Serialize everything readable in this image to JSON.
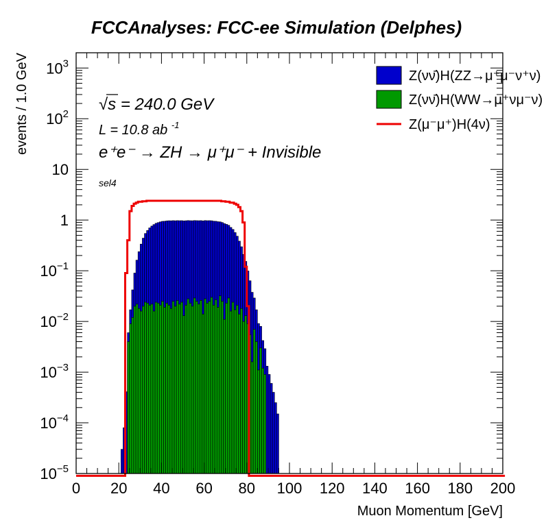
{
  "chart_data": {
    "type": "histogram",
    "title": "FCCAnalyses: FCC-ee Simulation (Delphes)",
    "xlabel": "Muon Momentum [GeV]",
    "ylabel": "events / 1.0 GeV",
    "xlim": [
      0,
      200
    ],
    "ylim": [
      1e-05,
      2000
    ],
    "log_y": true,
    "x_ticks": [
      "0",
      "20",
      "40",
      "60",
      "80",
      "100",
      "120",
      "140",
      "160",
      "180",
      "200"
    ],
    "y_ticks": [
      {
        "value": 1e-05,
        "base": "10",
        "exp": "−5"
      },
      {
        "value": 0.0001,
        "base": "10",
        "exp": "−4"
      },
      {
        "value": 0.001,
        "base": "10",
        "exp": "−3"
      },
      {
        "value": 0.01,
        "base": "10",
        "exp": "−2"
      },
      {
        "value": 0.1,
        "base": "10",
        "exp": "−1"
      },
      {
        "value": 1,
        "base": "1",
        "exp": ""
      },
      {
        "value": 10,
        "base": "10",
        "exp": ""
      },
      {
        "value": 100,
        "base": "10",
        "exp": "2"
      },
      {
        "value": 1000,
        "base": "10",
        "exp": "3"
      }
    ],
    "annotations": {
      "sqrt_s_value": "= 240.0 GeV",
      "lumi_text": "L = 10.8 ab",
      "lumi_exp": "-1",
      "process": "e⁺e⁻ → ZH → μ⁺μ⁻ + Invisible",
      "selection": "sel4"
    },
    "legend_position": "top-right",
    "series": [
      {
        "name": "Z(νν̄)H(ZZ→μ⁺μ⁻ν⁺ν)",
        "style": "stacked-fill",
        "color": "#0000cc",
        "bins": [
          [
            21,
            2e-05
          ],
          [
            22,
            7e-05
          ],
          [
            23,
            0.0004
          ],
          [
            24,
            0.002
          ],
          [
            25,
            0.008
          ],
          [
            26,
            0.03
          ],
          [
            27,
            0.07
          ],
          [
            28,
            0.14
          ],
          [
            29,
            0.22
          ],
          [
            30,
            0.32
          ],
          [
            31,
            0.42
          ],
          [
            32,
            0.52
          ],
          [
            33,
            0.6
          ],
          [
            34,
            0.68
          ],
          [
            35,
            0.74
          ],
          [
            36,
            0.8
          ],
          [
            37,
            0.84
          ],
          [
            38,
            0.87
          ],
          [
            39,
            0.9
          ],
          [
            40,
            0.92
          ],
          [
            41,
            0.93
          ],
          [
            42,
            0.94
          ],
          [
            43,
            0.95
          ],
          [
            44,
            0.95
          ],
          [
            45,
            0.95
          ],
          [
            46,
            0.95
          ],
          [
            47,
            0.95
          ],
          [
            48,
            0.95
          ],
          [
            49,
            0.95
          ],
          [
            50,
            0.95
          ],
          [
            51,
            0.95
          ],
          [
            52,
            0.95
          ],
          [
            53,
            0.95
          ],
          [
            54,
            0.95
          ],
          [
            55,
            0.95
          ],
          [
            56,
            0.95
          ],
          [
            57,
            0.95
          ],
          [
            58,
            0.95
          ],
          [
            59,
            0.95
          ],
          [
            60,
            0.95
          ],
          [
            61,
            0.95
          ],
          [
            62,
            0.95
          ],
          [
            63,
            0.94
          ],
          [
            64,
            0.93
          ],
          [
            65,
            0.92
          ],
          [
            66,
            0.91
          ],
          [
            67,
            0.89
          ],
          [
            68,
            0.87
          ],
          [
            69,
            0.84
          ],
          [
            70,
            0.8
          ],
          [
            71,
            0.76
          ],
          [
            72,
            0.7
          ],
          [
            73,
            0.63
          ],
          [
            74,
            0.55
          ],
          [
            75,
            0.46
          ],
          [
            76,
            0.37
          ],
          [
            77,
            0.28
          ],
          [
            78,
            0.2
          ],
          [
            79,
            0.14
          ],
          [
            80,
            0.09
          ],
          [
            81,
            0.058
          ],
          [
            82,
            0.036
          ],
          [
            83,
            0.022
          ],
          [
            84,
            0.013
          ],
          [
            85,
            0.008
          ],
          [
            86,
            0.005
          ],
          [
            87,
            0.003
          ],
          [
            88,
            0.002
          ],
          [
            89,
            0.0013
          ],
          [
            90,
            0.0009
          ],
          [
            91,
            0.0006
          ],
          [
            92,
            0.0004
          ],
          [
            93,
            0.00025
          ],
          [
            94,
            0.00015
          ],
          [
            95,
            1e-05
          ]
        ]
      },
      {
        "name": "Z(νν̄)H(WW→μ⁺νμ⁻ν)",
        "style": "stacked-fill",
        "color": "#009900",
        "bins": [
          [
            21,
            1e-05
          ],
          [
            22,
            1e-05
          ],
          [
            23,
            1e-05
          ],
          [
            24,
            0.004
          ],
          [
            25,
            0.009
          ],
          [
            26,
            0.012
          ],
          [
            27,
            0.02
          ],
          [
            28,
            0.022
          ],
          [
            29,
            0.018
          ],
          [
            30,
            0.016
          ],
          [
            31,
            0.02
          ],
          [
            32,
            0.024
          ],
          [
            33,
            0.023
          ],
          [
            34,
            0.021
          ],
          [
            35,
            0.022
          ],
          [
            36,
            0.016
          ],
          [
            37,
            0.024
          ],
          [
            38,
            0.023
          ],
          [
            39,
            0.021
          ],
          [
            40,
            0.025
          ],
          [
            41,
            0.019
          ],
          [
            42,
            0.023
          ],
          [
            43,
            0.021
          ],
          [
            44,
            0.018
          ],
          [
            45,
            0.025
          ],
          [
            46,
            0.02
          ],
          [
            47,
            0.026
          ],
          [
            48,
            0.022
          ],
          [
            49,
            0.024
          ],
          [
            50,
            0.013
          ],
          [
            51,
            0.021
          ],
          [
            52,
            0.028
          ],
          [
            53,
            0.023
          ],
          [
            54,
            0.02
          ],
          [
            55,
            0.029
          ],
          [
            56,
            0.025
          ],
          [
            57,
            0.022
          ],
          [
            58,
            0.026
          ],
          [
            59,
            0.014
          ],
          [
            60,
            0.028
          ],
          [
            61,
            0.023
          ],
          [
            62,
            0.025
          ],
          [
            63,
            0.03
          ],
          [
            64,
            0.021
          ],
          [
            65,
            0.027
          ],
          [
            66,
            0.019
          ],
          [
            67,
            0.032
          ],
          [
            68,
            0.025
          ],
          [
            69,
            0.011
          ],
          [
            70,
            0.023
          ],
          [
            71,
            0.029
          ],
          [
            72,
            0.016
          ],
          [
            73,
            0.024
          ],
          [
            74,
            0.017
          ],
          [
            75,
            0.021
          ],
          [
            76,
            0.014
          ],
          [
            77,
            0.018
          ],
          [
            78,
            0.01
          ],
          [
            79,
            0.013
          ],
          [
            80,
            0.009
          ],
          [
            81,
            0.0055
          ],
          [
            82,
            0.0016
          ],
          [
            83,
            0.007
          ],
          [
            84,
            0.004
          ],
          [
            85,
            0.0011
          ],
          [
            86,
            0.003
          ],
          [
            87,
            0.0012
          ],
          [
            88,
            0.0009
          ],
          [
            89,
            1e-05
          ]
        ]
      },
      {
        "name": "Z(μ⁻μ⁺)H(4ν)",
        "style": "line",
        "color": "#ee0000",
        "bins": [
          [
            0,
            9e-06
          ],
          [
            1,
            9e-06
          ],
          [
            2,
            9e-06
          ],
          [
            3,
            9e-06
          ],
          [
            4,
            9e-06
          ],
          [
            5,
            9e-06
          ],
          [
            6,
            9e-06
          ],
          [
            7,
            9e-06
          ],
          [
            8,
            9e-06
          ],
          [
            9,
            9e-06
          ],
          [
            10,
            9e-06
          ],
          [
            11,
            9e-06
          ],
          [
            12,
            9e-06
          ],
          [
            13,
            9e-06
          ],
          [
            14,
            9e-06
          ],
          [
            15,
            9e-06
          ],
          [
            16,
            9e-06
          ],
          [
            17,
            9e-06
          ],
          [
            18,
            9e-06
          ],
          [
            19,
            9e-06
          ],
          [
            20,
            9e-06
          ],
          [
            21,
            9e-06
          ],
          [
            22,
            9e-06
          ],
          [
            23,
            0.09
          ],
          [
            24,
            0.4
          ],
          [
            25,
            1.5
          ],
          [
            26,
            1.9
          ],
          [
            27,
            2.1
          ],
          [
            28,
            2.2
          ],
          [
            29,
            2.3
          ],
          [
            30,
            2.3
          ],
          [
            31,
            2.35
          ],
          [
            32,
            2.35
          ],
          [
            33,
            2.4
          ],
          [
            34,
            2.4
          ],
          [
            35,
            2.4
          ],
          [
            36,
            2.4
          ],
          [
            37,
            2.4
          ],
          [
            38,
            2.4
          ],
          [
            39,
            2.4
          ],
          [
            40,
            2.4
          ],
          [
            41,
            2.4
          ],
          [
            42,
            2.4
          ],
          [
            43,
            2.4
          ],
          [
            44,
            2.4
          ],
          [
            45,
            2.4
          ],
          [
            46,
            2.4
          ],
          [
            47,
            2.4
          ],
          [
            48,
            2.4
          ],
          [
            49,
            2.4
          ],
          [
            50,
            2.4
          ],
          [
            51,
            2.4
          ],
          [
            52,
            2.4
          ],
          [
            53,
            2.4
          ],
          [
            54,
            2.4
          ],
          [
            55,
            2.4
          ],
          [
            56,
            2.4
          ],
          [
            57,
            2.4
          ],
          [
            58,
            2.4
          ],
          [
            59,
            2.4
          ],
          [
            60,
            2.4
          ],
          [
            61,
            2.4
          ],
          [
            62,
            2.4
          ],
          [
            63,
            2.4
          ],
          [
            64,
            2.4
          ],
          [
            65,
            2.4
          ],
          [
            66,
            2.4
          ],
          [
            67,
            2.4
          ],
          [
            68,
            2.35
          ],
          [
            69,
            2.35
          ],
          [
            70,
            2.3
          ],
          [
            71,
            2.3
          ],
          [
            72,
            2.2
          ],
          [
            73,
            2.2
          ],
          [
            74,
            2.1
          ],
          [
            75,
            2.0
          ],
          [
            76,
            1.8
          ],
          [
            77,
            1.5
          ],
          [
            78,
            0.9
          ],
          [
            79,
            0.12
          ],
          [
            80,
            0.02
          ],
          [
            81,
            9e-06
          ],
          [
            82,
            9e-06
          ],
          [
            83,
            9e-06
          ],
          [
            84,
            9e-06
          ],
          [
            85,
            9e-06
          ],
          [
            86,
            9e-06
          ],
          [
            87,
            9e-06
          ],
          [
            88,
            9e-06
          ],
          [
            89,
            9e-06
          ],
          [
            90,
            9e-06
          ],
          [
            92,
            9e-06
          ],
          [
            95,
            9e-06
          ],
          [
            100,
            9e-06
          ],
          [
            120,
            9e-06
          ],
          [
            140,
            9e-06
          ],
          [
            160,
            9e-06
          ],
          [
            180,
            9e-06
          ],
          [
            200,
            9e-06
          ]
        ]
      }
    ]
  }
}
